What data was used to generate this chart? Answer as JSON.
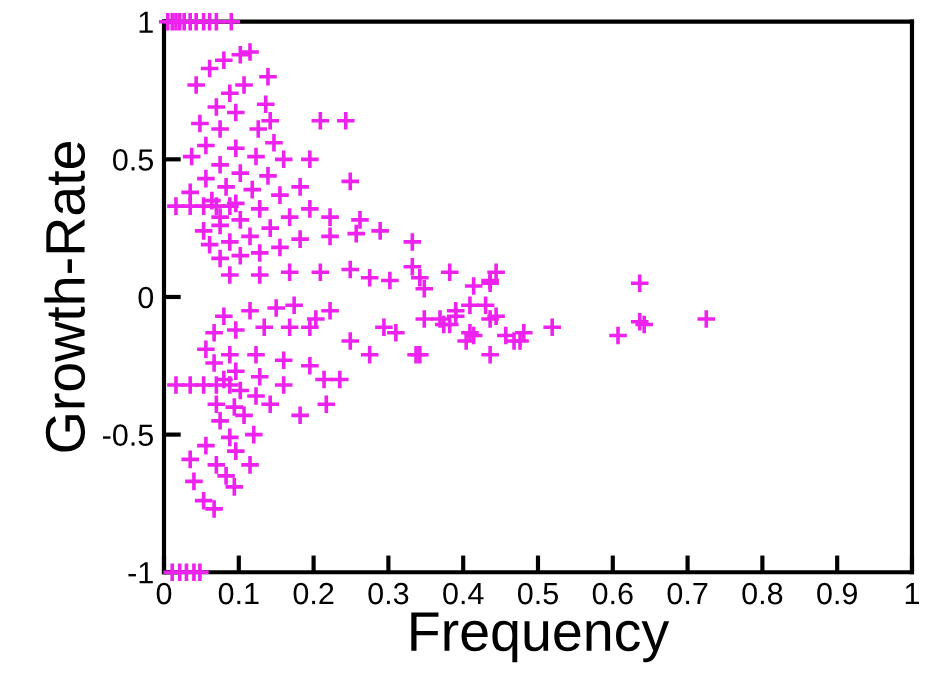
{
  "chart_data": {
    "type": "scatter",
    "xlabel": "Frequency",
    "ylabel": "Growth-Rate",
    "marker": "cross",
    "grid": false,
    "legend": false,
    "xlim": [
      0,
      1
    ],
    "ylim": [
      -1,
      1
    ],
    "xticks": [
      0,
      0.1,
      0.2,
      0.3,
      0.4,
      0.5,
      0.6,
      0.7,
      0.8,
      0.9,
      1
    ],
    "yticks": [
      -1,
      -0.5,
      0,
      0.5,
      1
    ],
    "series": [
      {
        "color": "#ee22ee",
        "x": [
          0.005,
          0.011,
          0.016,
          0.021,
          0.027,
          0.035,
          0.043,
          0.053,
          0.061,
          0.07,
          0.09,
          0.011,
          0.021,
          0.03,
          0.04,
          0.048,
          0.043,
          0.061,
          0.08,
          0.102,
          0.115,
          0.048,
          0.07,
          0.088,
          0.107,
          0.139,
          0.037,
          0.056,
          0.075,
          0.096,
          0.136,
          0.035,
          0.056,
          0.075,
          0.096,
          0.126,
          0.142,
          0.064,
          0.083,
          0.102,
          0.123,
          0.147,
          0.209,
          0.243,
          0.075,
          0.096,
          0.118,
          0.139,
          0.16,
          0.195,
          0.249,
          0.016,
          0.035,
          0.053,
          0.07,
          0.088,
          0.053,
          0.075,
          0.102,
          0.128,
          0.155,
          0.182,
          0.061,
          0.088,
          0.115,
          0.142,
          0.168,
          0.195,
          0.222,
          0.262,
          0.075,
          0.102,
          0.128,
          0.155,
          0.182,
          0.222,
          0.257,
          0.289,
          0.088,
          0.128,
          0.168,
          0.209,
          0.249,
          0.275,
          0.302,
          0.342,
          0.382,
          0.436,
          0.444,
          0.332,
          0.332,
          0.348,
          0.414,
          0.436,
          0.409,
          0.369,
          0.382,
          0.39,
          0.43,
          0.444,
          0.436,
          0.404,
          0.414,
          0.457,
          0.476,
          0.481,
          0.519,
          0.607,
          0.636,
          0.636,
          0.642,
          0.725,
          0.342,
          0.436,
          0.016,
          0.035,
          0.053,
          0.07,
          0.088,
          0.08,
          0.115,
          0.15,
          0.174,
          0.067,
          0.096,
          0.134,
          0.168,
          0.195,
          0.056,
          0.088,
          0.123,
          0.16,
          0.195,
          0.214,
          0.235,
          0.067,
          0.096,
          0.128,
          0.16,
          0.182,
          0.217,
          0.08,
          0.102,
          0.123,
          0.142,
          0.07,
          0.094,
          0.107,
          0.12,
          0.075,
          0.088,
          0.096,
          0.115,
          0.056,
          0.07,
          0.083,
          0.094,
          0.035,
          0.04,
          0.053,
          0.067,
          0.203,
          0.222,
          0.249,
          0.275,
          0.294,
          0.31,
          0.337,
          0.348,
          0.374,
          0.39,
          0.409,
          0.468
        ],
        "values": [
          1,
          1,
          1,
          1,
          1,
          1,
          1,
          1,
          1,
          1,
          1,
          -1,
          -1,
          -1,
          -1,
          -1,
          0.77,
          0.83,
          0.86,
          0.88,
          0.89,
          0.63,
          0.69,
          0.74,
          0.77,
          0.8,
          0.51,
          0.55,
          0.61,
          0.67,
          0.7,
          0.38,
          0.43,
          0.48,
          0.54,
          0.61,
          0.64,
          0.35,
          0.4,
          0.45,
          0.51,
          0.56,
          0.64,
          0.64,
          0.29,
          0.34,
          0.39,
          0.44,
          0.5,
          0.5,
          0.42,
          0.33,
          0.33,
          0.33,
          0.33,
          0.33,
          0.24,
          0.26,
          0.28,
          0.32,
          0.37,
          0.4,
          0.19,
          0.2,
          0.22,
          0.25,
          0.29,
          0.32,
          0.29,
          0.28,
          0.14,
          0.15,
          0.16,
          0.18,
          0.21,
          0.22,
          0.23,
          0.24,
          0.08,
          0.08,
          0.09,
          0.09,
          0.1,
          0.07,
          0.06,
          0.07,
          0.09,
          0.06,
          0.09,
          0.2,
          0.11,
          0.03,
          0.04,
          0.05,
          -0.03,
          -0.08,
          -0.1,
          -0.07,
          -0.03,
          -0.07,
          -0.08,
          -0.16,
          -0.14,
          -0.14,
          -0.16,
          -0.13,
          -0.11,
          -0.14,
          0.05,
          -0.09,
          -0.1,
          -0.08,
          -0.21,
          -0.21,
          -0.32,
          -0.32,
          -0.32,
          -0.32,
          -0.32,
          -0.07,
          -0.05,
          -0.04,
          -0.03,
          -0.13,
          -0.12,
          -0.11,
          -0.11,
          -0.11,
          -0.19,
          -0.21,
          -0.21,
          -0.23,
          -0.25,
          -0.3,
          -0.3,
          -0.24,
          -0.27,
          -0.29,
          -0.32,
          -0.43,
          -0.39,
          -0.3,
          -0.34,
          -0.36,
          -0.39,
          -0.39,
          -0.4,
          -0.43,
          -0.5,
          -0.45,
          -0.51,
          -0.56,
          -0.61,
          -0.54,
          -0.61,
          -0.65,
          -0.69,
          -0.59,
          -0.67,
          -0.74,
          -0.77,
          -0.08,
          -0.05,
          -0.16,
          -0.21,
          -0.11,
          -0.13,
          -0.21,
          -0.08,
          -0.1,
          -0.05,
          -0.13,
          -0.16
        ]
      }
    ]
  }
}
